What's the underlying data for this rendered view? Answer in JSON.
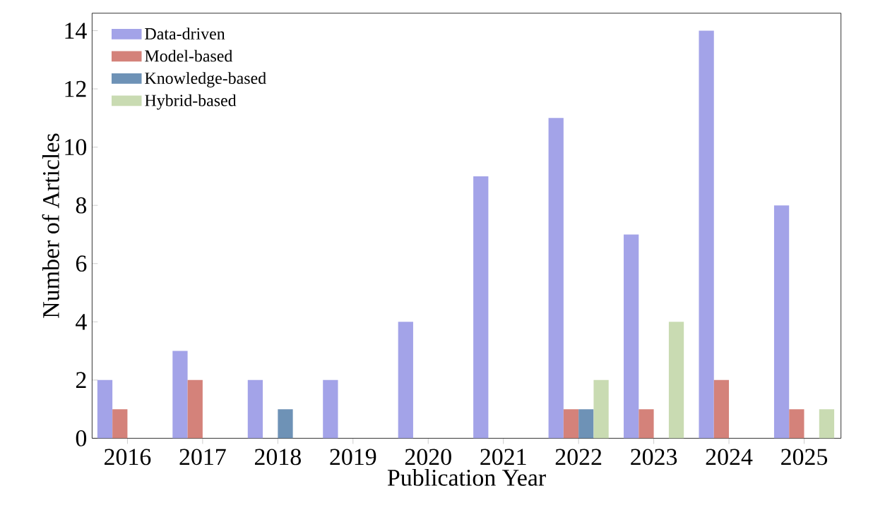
{
  "chart_data": {
    "type": "bar",
    "xlabel": "Publication Year",
    "ylabel": "Number of Articles",
    "categories": [
      "2016",
      "2017",
      "2018",
      "2019",
      "2020",
      "2021",
      "2022",
      "2023",
      "2024",
      "2025"
    ],
    "series": [
      {
        "name": "Data-driven",
        "color": "#a3a3e8",
        "values": [
          2,
          3,
          2,
          2,
          4,
          9,
          11,
          7,
          14,
          8
        ]
      },
      {
        "name": "Model-based",
        "color": "#d4827a",
        "values": [
          1,
          2,
          0,
          0,
          0,
          0,
          1,
          1,
          2,
          1
        ]
      },
      {
        "name": "Knowledge-based",
        "color": "#6e92b6",
        "values": [
          0,
          0,
          1,
          0,
          0,
          0,
          1,
          0,
          0,
          0
        ]
      },
      {
        "name": "Hybrid-based",
        "color": "#c9dbb2",
        "values": [
          0,
          0,
          0,
          0,
          0,
          0,
          2,
          4,
          0,
          1
        ]
      }
    ],
    "ylim": [
      0,
      14.6
    ],
    "yticks": [
      0,
      2,
      4,
      6,
      8,
      10,
      12,
      14
    ],
    "grid": false,
    "legend": "top left"
  }
}
